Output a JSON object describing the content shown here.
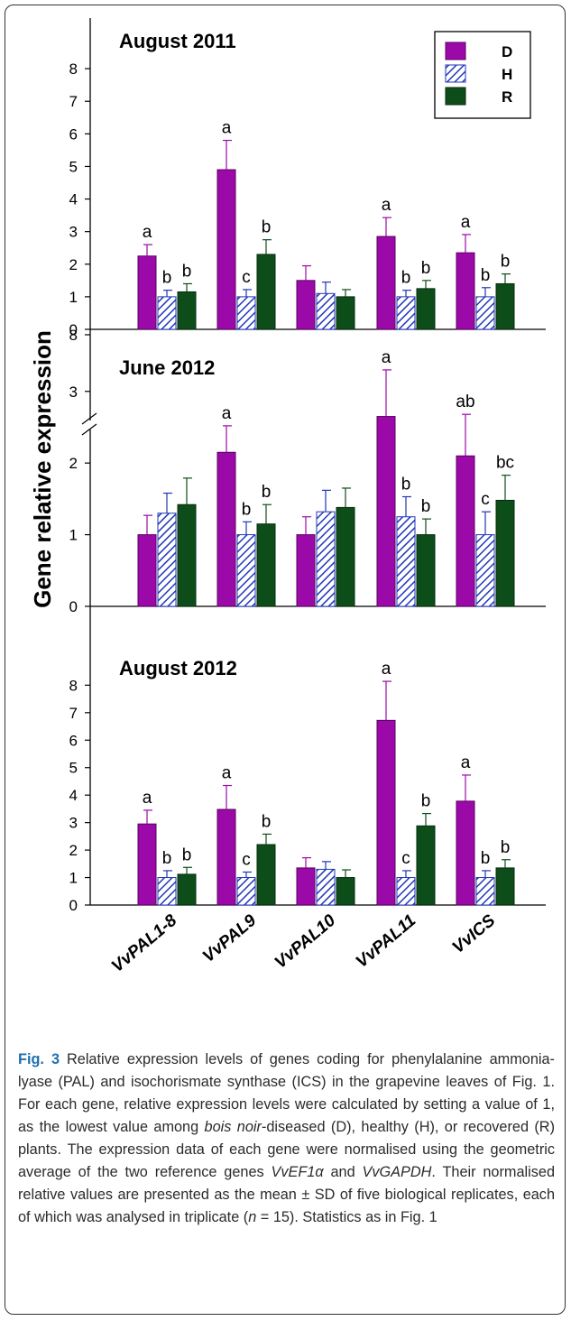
{
  "chart_data": {
    "type": "bar",
    "ylabel": "Gene relative expression",
    "categories": [
      "VvPAL1-8",
      "VvPAL9",
      "VvPAL10",
      "VvPAL11",
      "VvICS"
    ],
    "legend": {
      "placement": "top-right",
      "entries": [
        {
          "label": "D",
          "color": "#9b0aa8",
          "pattern": "solid"
        },
        {
          "label": "H",
          "color": "#1f36b8",
          "pattern": "hatched"
        },
        {
          "label": "R",
          "color": "#0d4d1a",
          "pattern": "solid"
        }
      ]
    },
    "panels": [
      {
        "title": "August 2011",
        "ylim": [
          0,
          9
        ],
        "yticks": [
          0,
          1,
          2,
          3,
          4,
          5,
          6,
          7,
          8
        ],
        "series": [
          {
            "name": "D",
            "values": [
              2.25,
              4.9,
              1.5,
              2.85,
              2.35
            ],
            "errors": [
              0.35,
              0.9,
              0.45,
              0.58,
              0.56
            ],
            "letters": [
              "a",
              "a",
              "",
              "a",
              "a"
            ]
          },
          {
            "name": "H",
            "values": [
              1.0,
              1.0,
              1.1,
              1.0,
              1.0
            ],
            "errors": [
              0.2,
              0.22,
              0.35,
              0.2,
              0.28
            ],
            "letters": [
              "b",
              "c",
              "",
              "b",
              "b"
            ]
          },
          {
            "name": "R",
            "values": [
              1.15,
              2.3,
              1.0,
              1.25,
              1.4
            ],
            "errors": [
              0.25,
              0.45,
              0.22,
              0.25,
              0.3
            ],
            "letters": [
              "b",
              "b",
              "",
              "b",
              "b"
            ]
          }
        ]
      },
      {
        "title": "June 2012",
        "ylim": [
          0,
          3.4
        ],
        "yticks": [
          0,
          1,
          2,
          3
        ],
        "break_tick": 8,
        "series": [
          {
            "name": "D",
            "values": [
              1.0,
              2.15,
              1.0,
              2.65,
              2.1
            ],
            "errors": [
              0.27,
              0.37,
              0.25,
              0.65,
              0.58
            ],
            "letters": [
              "",
              "a",
              "",
              "a",
              "ab"
            ]
          },
          {
            "name": "H",
            "values": [
              1.3,
              1.0,
              1.32,
              1.25,
              1.0
            ],
            "errors": [
              0.28,
              0.18,
              0.3,
              0.28,
              0.32
            ],
            "letters": [
              "",
              "b",
              "",
              "b",
              "c"
            ]
          },
          {
            "name": "R",
            "values": [
              1.42,
              1.15,
              1.38,
              1.0,
              1.48
            ],
            "errors": [
              0.37,
              0.27,
              0.27,
              0.22,
              0.35
            ],
            "letters": [
              "",
              "b",
              "",
              "b",
              "bc"
            ]
          }
        ]
      },
      {
        "title": "August 2012",
        "ylim": [
          0,
          8.8
        ],
        "yticks": [
          0,
          1,
          2,
          3,
          4,
          5,
          6,
          7,
          8
        ],
        "series": [
          {
            "name": "D",
            "values": [
              2.95,
              3.48,
              1.35,
              6.72,
              3.78
            ],
            "errors": [
              0.5,
              0.87,
              0.37,
              1.42,
              0.95
            ],
            "letters": [
              "a",
              "a",
              "",
              "a",
              "a"
            ]
          },
          {
            "name": "H",
            "values": [
              1.0,
              1.0,
              1.3,
              1.0,
              1.0
            ],
            "errors": [
              0.25,
              0.2,
              0.28,
              0.25,
              0.25
            ],
            "letters": [
              "b",
              "c",
              "",
              "c",
              "b"
            ]
          },
          {
            "name": "R",
            "values": [
              1.12,
              2.2,
              1.0,
              2.88,
              1.35
            ],
            "errors": [
              0.25,
              0.38,
              0.28,
              0.45,
              0.3
            ],
            "letters": [
              "b",
              "b",
              "",
              "b",
              "b"
            ]
          }
        ]
      }
    ]
  },
  "caption": {
    "label": "Fig. 3",
    "parts": [
      " Relative expression levels of genes coding for phenylalanine ammonia-lyase (PAL) and isochorismate synthase (ICS) in the grapevine leaves of Fig. 1. For each gene, relative expression levels were calculated by setting a value of 1, as the lowest value among ",
      "bois noir",
      "-diseased (D), healthy (H), or recovered (R) plants. The expression data of each gene were normalised using the geometric average of the two reference genes ",
      "VvEF1α",
      " and ",
      "VvGAPDH",
      ". Their normalised relative values are presented as the mean ± SD of five biological replicates, each of which was analysed in triplicate (",
      "n",
      " = 15). Statistics as in Fig. 1"
    ]
  }
}
